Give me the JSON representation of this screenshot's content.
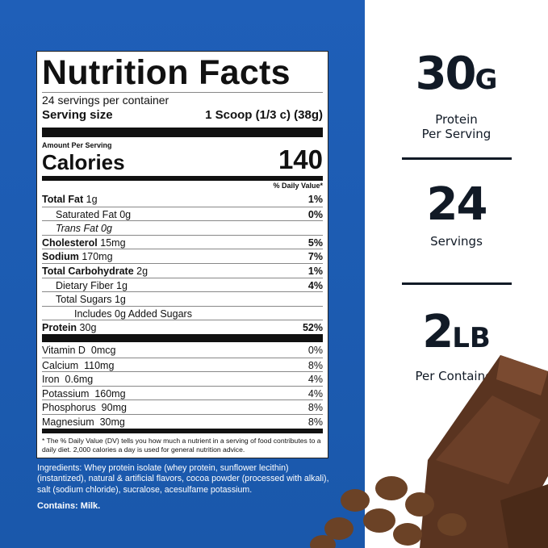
{
  "label": {
    "title": "Nutrition Facts",
    "servings_per_container": "24 servings per container",
    "serving_size_label": "Serving size",
    "serving_size_value": "1 Scoop (1/3 c) (38g)",
    "amount_per_serving": "Amount Per Serving",
    "calories_label": "Calories",
    "calories_value": "140",
    "daily_value_header": "% Daily Value*",
    "nutrients": [
      {
        "name": "Total Fat",
        "amount": "1g",
        "dv": "1%",
        "bold": true,
        "indent": 0
      },
      {
        "name": "Saturated Fat",
        "amount": "0g",
        "dv": "0%",
        "bold": false,
        "indent": 1
      },
      {
        "name": "Trans Fat",
        "amount": "0g",
        "dv": "",
        "bold": false,
        "indent": 1,
        "italic": true
      },
      {
        "name": "Cholesterol",
        "amount": "15mg",
        "dv": "5%",
        "bold": true,
        "indent": 0
      },
      {
        "name": "Sodium",
        "amount": "170mg",
        "dv": "7%",
        "bold": true,
        "indent": 0
      },
      {
        "name": "Total Carbohydrate",
        "amount": "2g",
        "dv": "1%",
        "bold": true,
        "indent": 0
      },
      {
        "name": "Dietary Fiber",
        "amount": "1g",
        "dv": "4%",
        "bold": false,
        "indent": 1
      },
      {
        "name": "Total Sugars",
        "amount": "1g",
        "dv": "",
        "bold": false,
        "indent": 1
      },
      {
        "name": "Includes 0g Added Sugars",
        "amount": "",
        "dv": "",
        "bold": false,
        "indent": 2
      },
      {
        "name": "Protein",
        "amount": "30g",
        "dv": "52%",
        "bold": true,
        "indent": 0
      }
    ],
    "vitamins": [
      {
        "name": "Vitamin D",
        "amount": "0mcg",
        "dv": "0%"
      },
      {
        "name": "Calcium",
        "amount": "110mg",
        "dv": "8%"
      },
      {
        "name": "Iron",
        "amount": "0.6mg",
        "dv": "4%"
      },
      {
        "name": "Potassium",
        "amount": "160mg",
        "dv": "4%"
      },
      {
        "name": "Phosphorus",
        "amount": "90mg",
        "dv": "8%"
      },
      {
        "name": "Magnesium",
        "amount": "30mg",
        "dv": "8%"
      }
    ],
    "footnote": "* The % Daily Value (DV) tells you how much a nutrient in a serving of food contributes to a daily diet. 2,000 calories a day is used for general nutrition advice."
  },
  "ingredients": "Ingredients: Whey protein isolate (whey protein, sunflower lecithin)(instantized), natural & artificial flavors, cocoa powder (processed with alkali), salt (sodium chloride), sucralose, acesulfame potassium.",
  "contains": "Contains: Milk.",
  "stats": [
    {
      "number": "30",
      "unit": "G",
      "caption1": "Protein",
      "caption2": "Per Serving"
    },
    {
      "number": "24",
      "unit": "",
      "caption1": "Servings",
      "caption2": ""
    },
    {
      "number": "2",
      "unit": "LB",
      "caption1": "Per Container",
      "caption2": ""
    }
  ],
  "colors": {
    "background_blue": "#1f5fb8",
    "text_dark": "#111a26",
    "chocolate": "#5a3420"
  }
}
